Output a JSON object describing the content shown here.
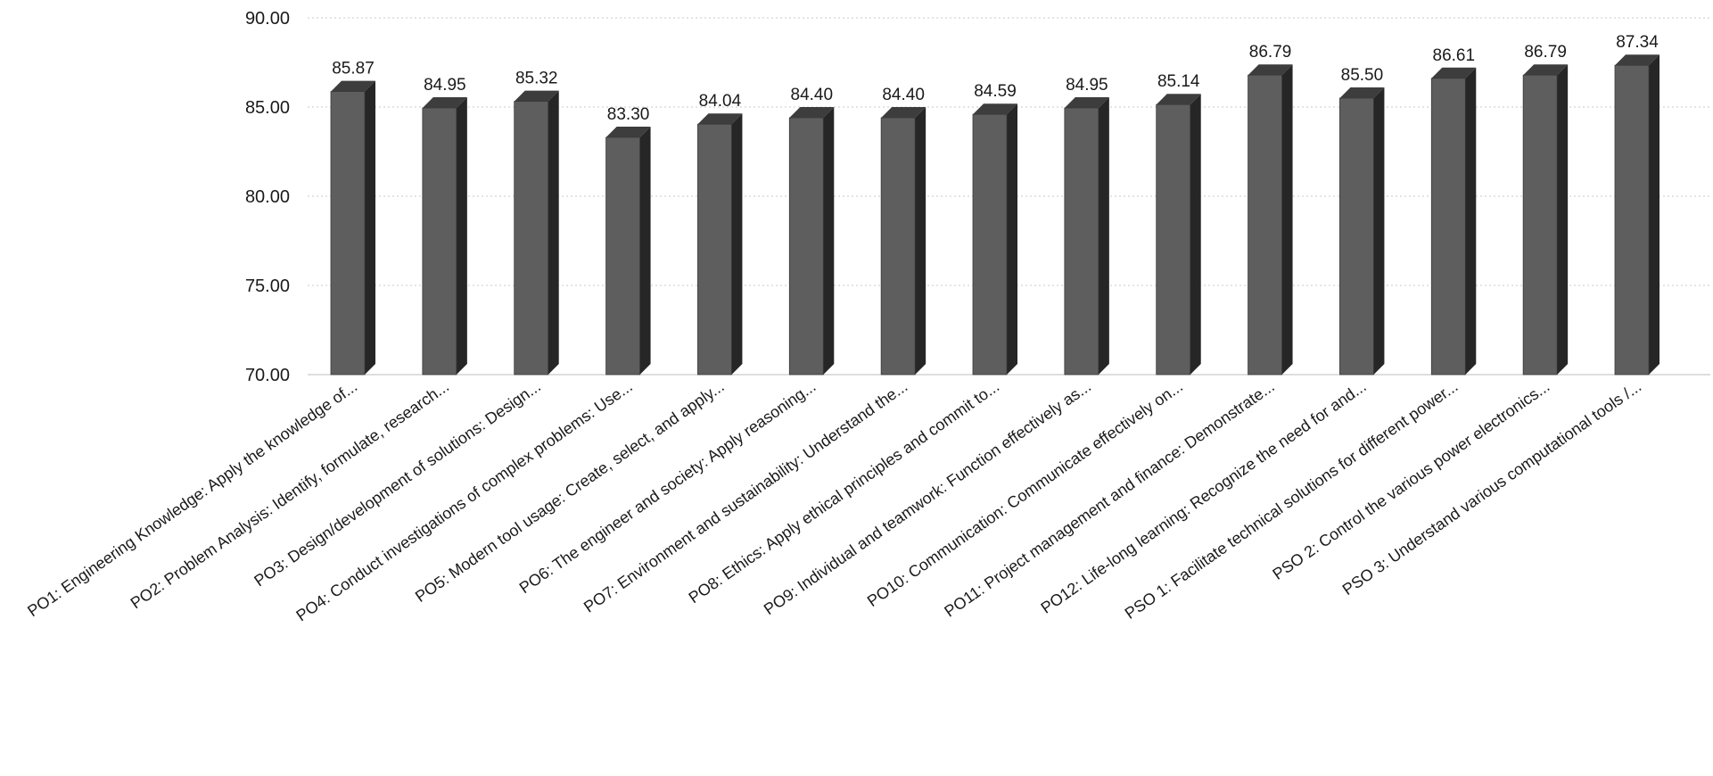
{
  "chart_data": {
    "type": "bar",
    "style": "3d-column",
    "title": "",
    "xlabel": "",
    "ylabel": "",
    "ylim": [
      70,
      90
    ],
    "yticks": [
      "70.00",
      "75.00",
      "80.00",
      "85.00",
      "90.00"
    ],
    "grid": true,
    "legend": "none",
    "categories": [
      "PO1: Engineering Knowledge: Apply the knowledge of...",
      "PO2: Problem Analysis: Identify, formulate, research...",
      "PO3: Design/development of solutions: Design...",
      "PO4: Conduct investigations of complex problems: Use...",
      "PO5: Modern tool usage: Create, select, and apply...",
      "PO6: The engineer and society: Apply reasoning...",
      "PO7: Environment and sustainability: Understand the...",
      "PO8: Ethics: Apply ethical principles and commit to...",
      "PO9: Individual and teamwork: Function effectively as...",
      "PO10: Communication: Communicate effectively on...",
      "PO11: Project management and finance: Demonstrate...",
      "PO12: Life-long learning: Recognize the need for and...",
      "PSO 1: Facilitate technical solutions for different power...",
      "PSO 2: Control the various power electronics...",
      "PSO 3: Understand various computational tools /..."
    ],
    "values": [
      85.87,
      84.95,
      85.32,
      83.3,
      84.04,
      84.4,
      84.4,
      84.59,
      84.95,
      85.14,
      86.79,
      85.5,
      86.61,
      86.79,
      87.34
    ],
    "data_labels": [
      "85.87",
      "84.95",
      "85.32",
      "83.30",
      "84.04",
      "84.40",
      "84.40",
      "84.59",
      "84.95",
      "85.14",
      "86.79",
      "85.50",
      "86.61",
      "86.79",
      "87.34"
    ],
    "colors": {
      "bar_front": "#5e5e5e",
      "bar_side": "#262626",
      "bar_top": "#3d3d3d",
      "grid": "#c8c8c8",
      "text": "#1a1a1a"
    }
  }
}
